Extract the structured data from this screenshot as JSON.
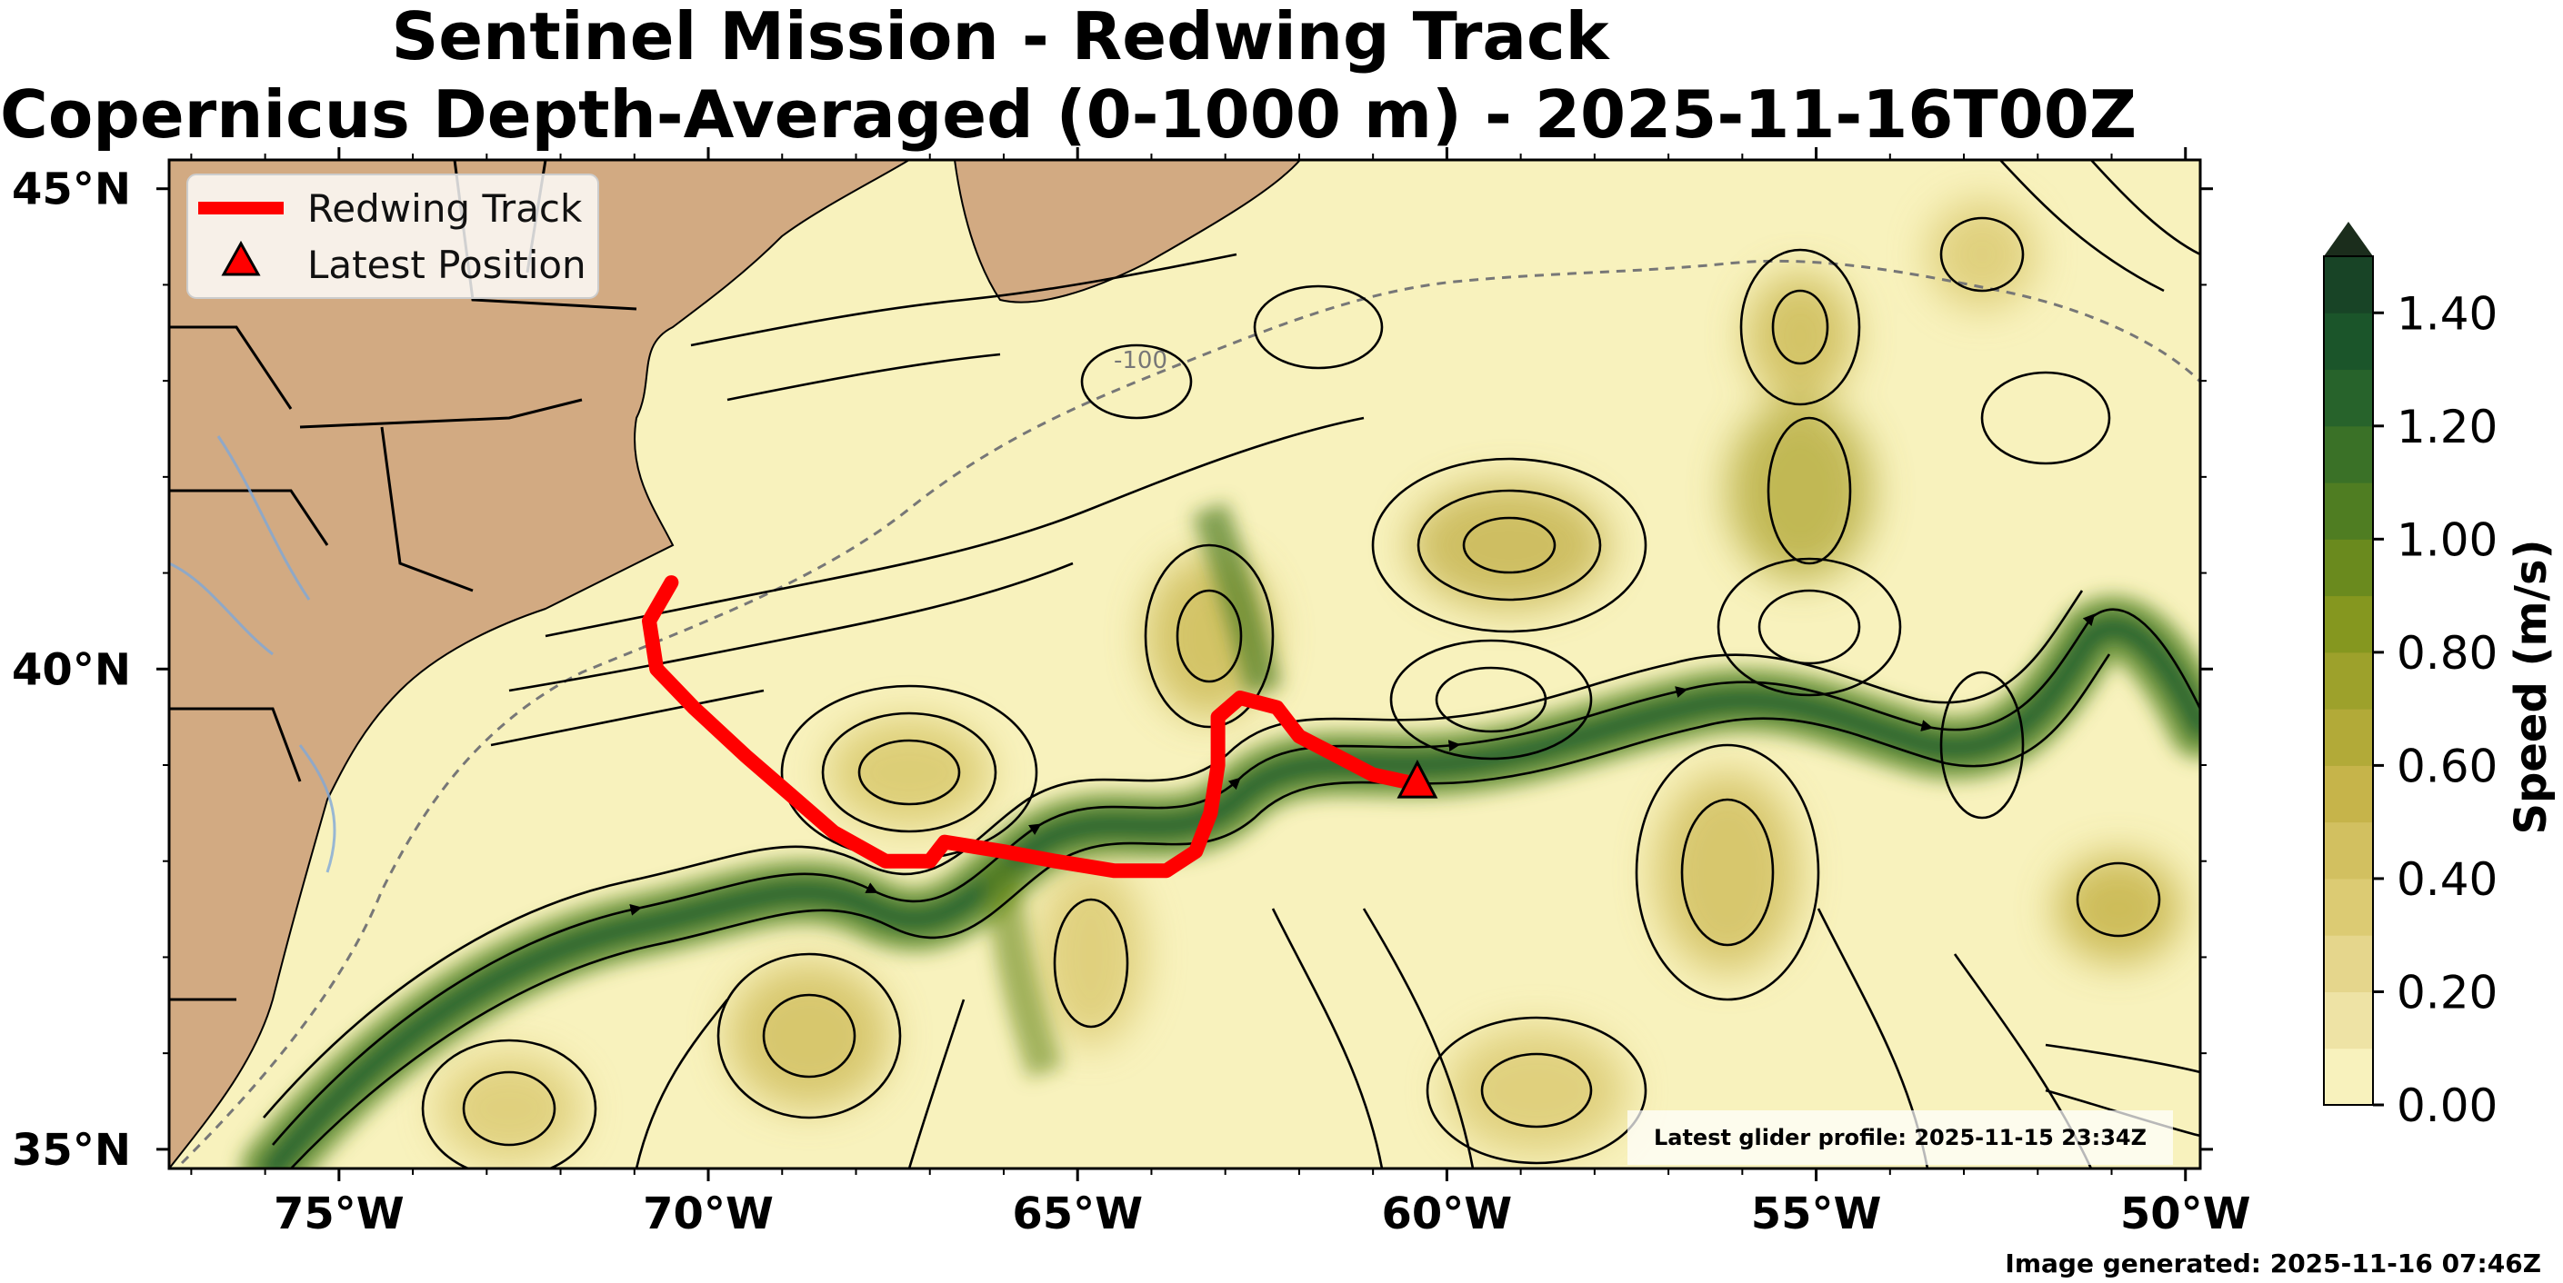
{
  "title": {
    "line1": "Sentinel Mission - Redwing Track",
    "line2": "Copernicus Depth-Averaged (0-1000 m) - 2025-11-16T00Z"
  },
  "map": {
    "lon_range": [
      -77.3,
      -49.8
    ],
    "lat_range": [
      34.8,
      45.3
    ],
    "lon_ticks": [
      {
        "lon": -75,
        "label": "75°W"
      },
      {
        "lon": -70,
        "label": "70°W"
      },
      {
        "lon": -65,
        "label": "65°W"
      },
      {
        "lon": -60,
        "label": "60°W"
      },
      {
        "lon": -55,
        "label": "55°W"
      },
      {
        "lon": -50,
        "label": "50°W"
      }
    ],
    "lat_ticks": [
      {
        "lat": 45,
        "label": "45°N"
      },
      {
        "lat": 40,
        "label": "40°N"
      },
      {
        "lat": 35,
        "label": "35°N"
      }
    ],
    "bathymetry_contour_label": "-100",
    "land_color": "#d2aa82",
    "ocean_low_color": "#f8f2bd"
  },
  "legend": {
    "track_label": "Redwing Track",
    "latest_label": "Latest Position",
    "track_color": "#ff0000",
    "marker_color": "#ff0000"
  },
  "track": [
    [
      -70.5,
      40.9
    ],
    [
      -70.8,
      40.5
    ],
    [
      -70.7,
      40.0
    ],
    [
      -70.2,
      39.6
    ],
    [
      -69.5,
      39.1
    ],
    [
      -68.9,
      38.7
    ],
    [
      -68.3,
      38.3
    ],
    [
      -67.6,
      38.0
    ],
    [
      -67.0,
      38.0
    ],
    [
      -66.8,
      38.2
    ],
    [
      -66.0,
      38.1
    ],
    [
      -65.3,
      38.0
    ],
    [
      -64.5,
      37.9
    ],
    [
      -63.8,
      37.9
    ],
    [
      -63.4,
      38.1
    ],
    [
      -63.2,
      38.5
    ],
    [
      -63.1,
      39.0
    ],
    [
      -63.1,
      39.5
    ],
    [
      -62.8,
      39.7
    ],
    [
      -62.3,
      39.6
    ],
    [
      -62.0,
      39.3
    ],
    [
      -61.5,
      39.1
    ],
    [
      -61.0,
      38.9
    ],
    [
      -60.4,
      38.8
    ]
  ],
  "latest_position": {
    "lon": -60.4,
    "lat": 38.8
  },
  "colorbar": {
    "title": "Speed (m/s)",
    "ticks": [
      "0.00",
      "0.20",
      "0.40",
      "0.60",
      "0.80",
      "1.00",
      "1.20",
      "1.40"
    ],
    "min": 0.0,
    "max": 1.5,
    "step": 0.1,
    "colors": [
      "#f8f2bd",
      "#eee3a5",
      "#e5d68c",
      "#dccb73",
      "#d2c060",
      "#c6b44a",
      "#b2aa38",
      "#9da12b",
      "#85971f",
      "#6a8a1e",
      "#4f7d22",
      "#3a7127",
      "#27632b",
      "#1b552a",
      "#184426",
      "#1b2d1c"
    ]
  },
  "footer": {
    "latest_profile": "Latest glider profile: 2025-11-15 23:34Z",
    "generated": "Image generated: 2025-11-16 07:46Z"
  }
}
